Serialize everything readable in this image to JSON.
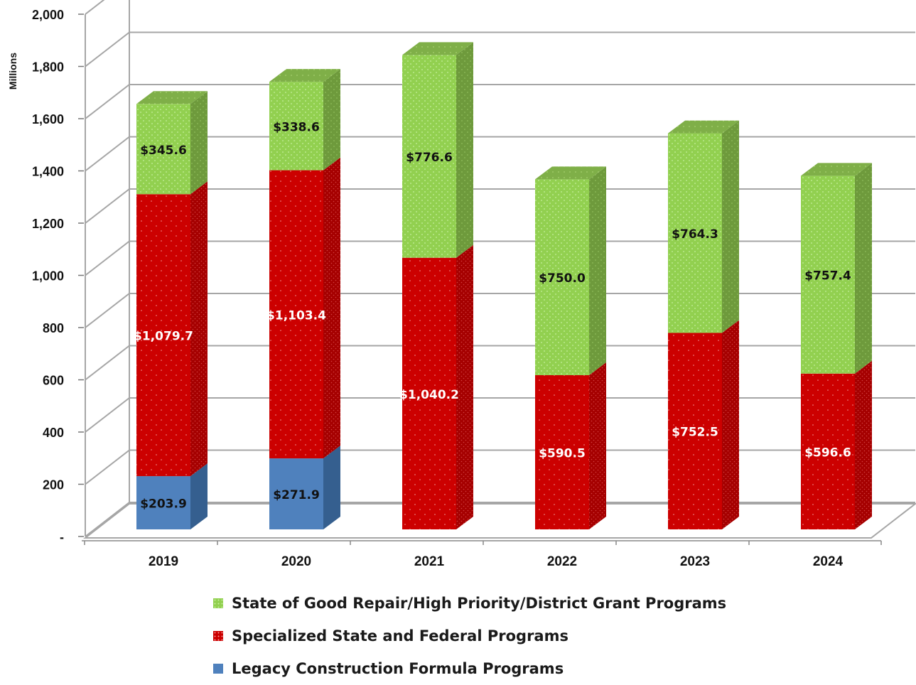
{
  "chart_data": {
    "type": "bar",
    "stacked": true,
    "three_d": true,
    "ylabel": "Millions",
    "ylim": [
      0,
      2000
    ],
    "ytick_labels": [
      "-",
      "200",
      "400",
      "600",
      "800",
      "1,000",
      "1,200",
      "1,400",
      "1,600",
      "1,800",
      "2,000"
    ],
    "categories": [
      "2019",
      "2020",
      "2021",
      "2022",
      "2023",
      "2024"
    ],
    "series": [
      {
        "name": "Legacy Construction Formula Programs",
        "values": [
          203.9,
          271.9,
          0,
          0,
          0,
          0
        ],
        "labels": [
          "$203.9",
          "$271.9",
          "",
          "",
          "",
          ""
        ],
        "color": "#4f81bd"
      },
      {
        "name": "Specialized State and Federal Programs",
        "values": [
          1079.7,
          1103.4,
          1040.2,
          590.5,
          752.5,
          596.6
        ],
        "labels": [
          "$1,079.7",
          "$1,103.4",
          "$1,040.2",
          "$590.5",
          "$752.5",
          "$596.6"
        ],
        "color": "#cc0000"
      },
      {
        "name": "State of Good Repair/High Priority/District Grant Programs",
        "values": [
          345.6,
          338.6,
          776.6,
          750.0,
          764.3,
          757.4
        ],
        "labels": [
          "$345.6",
          "$338.6",
          "$776.6",
          "$750.0",
          "$764.3",
          "$757.4"
        ],
        "color": "#92d050"
      }
    ],
    "legend_position": "bottom",
    "grid": true
  }
}
